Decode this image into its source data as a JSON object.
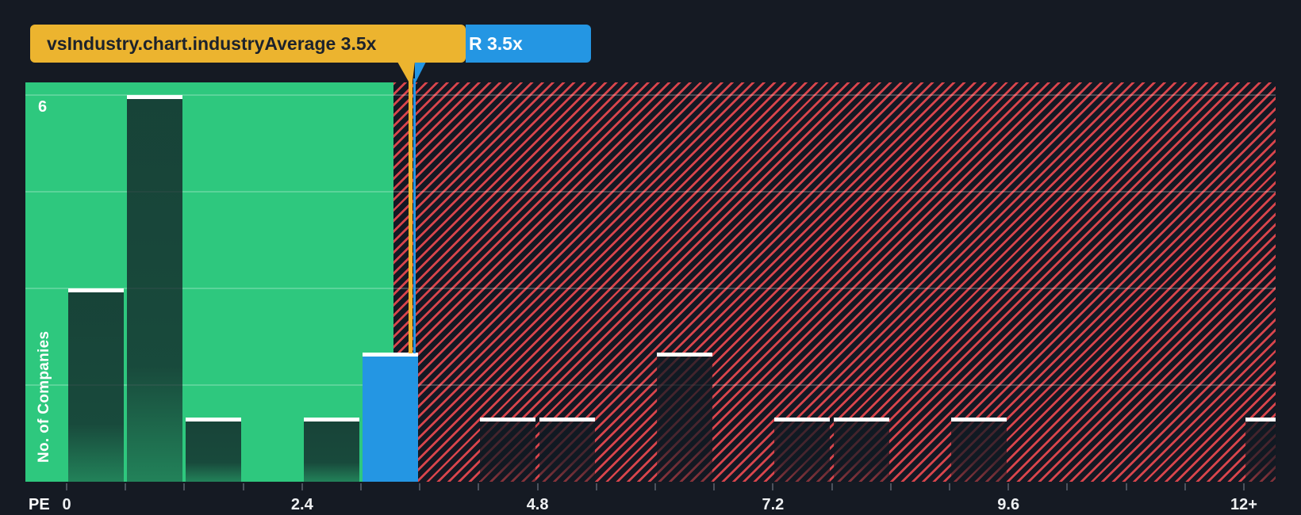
{
  "colors": {
    "background": "#151a23",
    "below_average_zone_green": "#2ec87e",
    "above_average_stripe_red": "#e9494f",
    "company_blue": "#2496e3",
    "industry_amber": "#ecb42f",
    "bar_cap_white": "#ffffff"
  },
  "tooltips": {
    "industry": {
      "label": "vsIndustry.chart.industryAverage 3.5x",
      "value": "3.5x"
    },
    "company": {
      "label": "R 3.5x",
      "ticker": "R",
      "value": "3.5x"
    }
  },
  "axes": {
    "y_label": "No. of Companies",
    "y_max_label": "6",
    "x_prefix": "PE",
    "x_tick_labels": [
      "0",
      "2.4",
      "4.8",
      "7.2",
      "9.6",
      "12+"
    ]
  },
  "chart_data": {
    "type": "bar",
    "xlabel": "PE",
    "ylabel": "No. of Companies",
    "bin_start": 0,
    "bin_width": 0.6,
    "counts": [
      3,
      6,
      1,
      0,
      1,
      2,
      0,
      1,
      1,
      0,
      2,
      0,
      1,
      1,
      0,
      1,
      0,
      0,
      0,
      0,
      1
    ],
    "ylim": [
      0,
      6.2
    ],
    "xlim": [
      0,
      12.3
    ],
    "gridline_values": [
      1.5,
      3,
      4.5,
      6
    ],
    "x_labeled_values": [
      0,
      2.4,
      4.8,
      7.2,
      9.6,
      12
    ],
    "industry_average": 3.5,
    "company": {
      "ticker": "R",
      "pe": 3.5,
      "highlight_bin_index": 5
    },
    "green_zone_max_pe": 3.33,
    "legend_position": "none",
    "grid": "on"
  }
}
